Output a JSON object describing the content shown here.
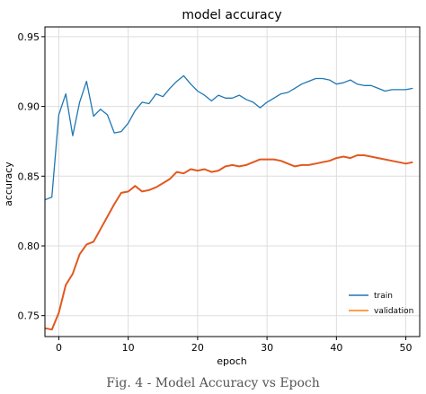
{
  "caption": "Fig. 4 - Model Accuracy vs Epoch",
  "colors": {
    "train": "#1f77b4",
    "validation": "#e2581f",
    "validation_legend": "#ff7f0e",
    "grid": "#dddddd",
    "axis": "#000000"
  },
  "chart_data": {
    "type": "line",
    "title": "model accuracy",
    "xlabel": "epoch",
    "ylabel": "accuracy",
    "xlim": [
      -2,
      52
    ],
    "ylim": [
      0.735,
      0.957
    ],
    "xticks": [
      0,
      10,
      20,
      30,
      40,
      50
    ],
    "yticks": [
      0.75,
      0.8,
      0.85,
      0.9,
      0.95
    ],
    "ytick_labels": [
      "0.75",
      "0.80",
      "0.85",
      "0.90",
      "0.95"
    ],
    "grid": true,
    "legend_position": "bottom-right",
    "series": [
      {
        "name": "train",
        "color": "#1f77b4",
        "x": [
          -2,
          -1,
          0,
          1,
          2,
          3,
          4,
          5,
          6,
          7,
          8,
          9,
          10,
          11,
          12,
          13,
          14,
          15,
          16,
          17,
          18,
          19,
          20,
          21,
          22,
          23,
          24,
          25,
          26,
          27,
          28,
          29,
          30,
          31,
          32,
          33,
          34,
          35,
          36,
          37,
          38,
          39,
          40,
          41,
          42,
          43,
          44,
          45,
          46,
          47,
          48,
          49,
          50,
          51
        ],
        "values": [
          0.833,
          0.835,
          0.894,
          0.909,
          0.879,
          0.903,
          0.918,
          0.893,
          0.898,
          0.894,
          0.881,
          0.882,
          0.888,
          0.897,
          0.903,
          0.902,
          0.909,
          0.907,
          0.913,
          0.918,
          0.922,
          0.916,
          0.911,
          0.908,
          0.904,
          0.908,
          0.906,
          0.906,
          0.908,
          0.905,
          0.903,
          0.899,
          0.903,
          0.906,
          0.909,
          0.91,
          0.913,
          0.916,
          0.918,
          0.92,
          0.92,
          0.919,
          0.916,
          0.917,
          0.919,
          0.916,
          0.915,
          0.915,
          0.913,
          0.911,
          0.912,
          0.912,
          0.912,
          0.913
        ]
      },
      {
        "name": "validation",
        "color": "#e2581f",
        "x": [
          -2,
          -1,
          0,
          1,
          2,
          3,
          4,
          5,
          6,
          7,
          8,
          9,
          10,
          11,
          12,
          13,
          14,
          15,
          16,
          17,
          18,
          19,
          20,
          21,
          22,
          23,
          24,
          25,
          26,
          27,
          28,
          29,
          30,
          31,
          32,
          33,
          34,
          35,
          36,
          37,
          38,
          39,
          40,
          41,
          42,
          43,
          44,
          45,
          46,
          47,
          48,
          49,
          50,
          51
        ],
        "values": [
          0.741,
          0.74,
          0.752,
          0.772,
          0.78,
          0.794,
          0.801,
          0.803,
          0.812,
          0.821,
          0.83,
          0.838,
          0.839,
          0.843,
          0.839,
          0.84,
          0.842,
          0.845,
          0.848,
          0.853,
          0.852,
          0.855,
          0.854,
          0.855,
          0.853,
          0.854,
          0.857,
          0.858,
          0.857,
          0.858,
          0.86,
          0.862,
          0.862,
          0.862,
          0.861,
          0.859,
          0.857,
          0.858,
          0.858,
          0.859,
          0.86,
          0.861,
          0.863,
          0.864,
          0.863,
          0.865,
          0.865,
          0.864,
          0.863,
          0.862,
          0.861,
          0.86,
          0.859,
          0.86
        ]
      }
    ]
  }
}
